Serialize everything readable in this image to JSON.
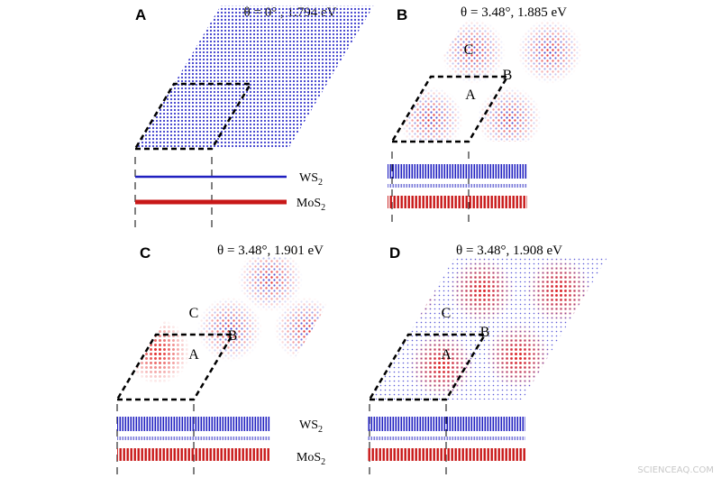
{
  "panels": [
    {
      "label": "A",
      "caption": "θ = 0° , 1.794 eV",
      "sites": [],
      "layers": [
        {
          "name": "WS",
          "sub": "2"
        },
        {
          "name": "MoS",
          "sub": "2"
        }
      ]
    },
    {
      "label": "B",
      "caption": "θ = 3.48°, 1.885 eV",
      "sites": [
        "C",
        "B",
        "A"
      ],
      "layers": []
    },
    {
      "label": "C",
      "caption": "θ = 3.48°, 1.901 eV",
      "sites": [
        "C",
        "B",
        "A"
      ],
      "layers": [
        {
          "name": "WS",
          "sub": "2"
        },
        {
          "name": "MoS",
          "sub": "2"
        }
      ]
    },
    {
      "label": "D",
      "caption": "θ = 3.48°, 1.908 eV",
      "sites": [
        "C",
        "B",
        "A"
      ],
      "layers": []
    }
  ],
  "watermark": "SCIENCEAQ.COM"
}
